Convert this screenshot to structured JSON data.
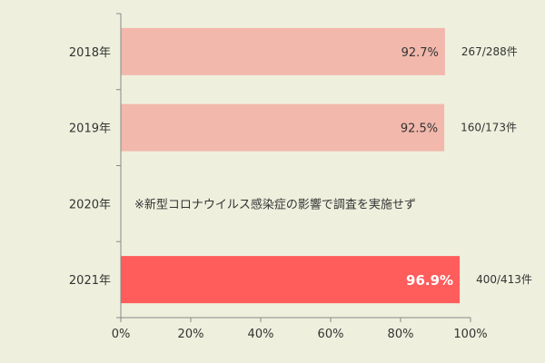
{
  "chart_data": {
    "type": "bar",
    "orientation": "horizontal",
    "categories": [
      "2018年",
      "2019年",
      "2020年",
      "2021年"
    ],
    "values": [
      92.7,
      92.5,
      null,
      96.9
    ],
    "value_labels": [
      "92.7%",
      "92.5%",
      "",
      "96.9%"
    ],
    "counts": [
      "267/288件",
      "160/173件",
      "",
      "400/413件"
    ],
    "highlight_index": 3,
    "note_for_missing": "※新型コロナウイルス感染症の影響で調査を実施せず",
    "xlim": [
      0,
      100
    ],
    "xticks": [
      0,
      20,
      40,
      60,
      80,
      100
    ],
    "xtick_labels": [
      "0%",
      "20%",
      "40%",
      "60%",
      "80%",
      "100%"
    ],
    "grid": false,
    "colors": {
      "bar": "#f2b8ac",
      "bar_highlight": "#ff5c5c",
      "axis": "#888888",
      "background": "#eef0dd"
    }
  }
}
